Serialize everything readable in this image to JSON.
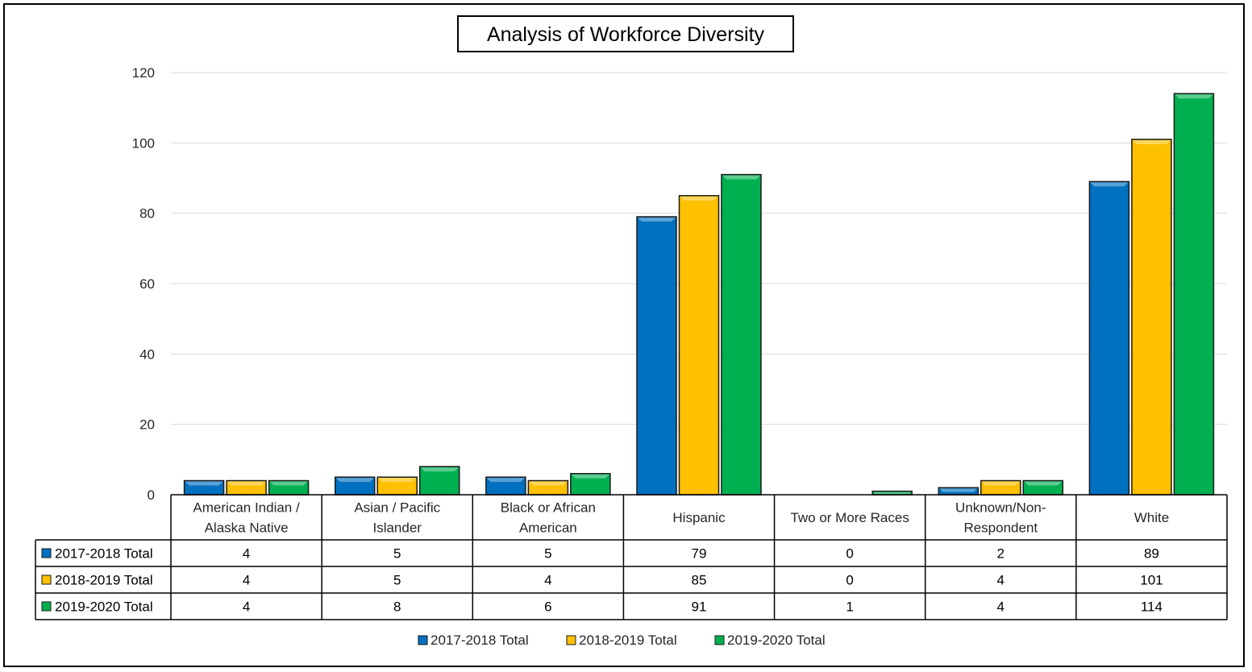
{
  "chart_data": {
    "type": "bar",
    "title": "Analysis of Workforce Diversity",
    "xlabel": "",
    "ylabel": "",
    "ylim": [
      0,
      120
    ],
    "yticks": [
      0,
      20,
      40,
      60,
      80,
      100,
      120
    ],
    "grid": true,
    "legend_position": "bottom",
    "categories": [
      [
        "American Indian /",
        "Alaska Native"
      ],
      [
        "Asian / Pacific",
        "Islander"
      ],
      [
        "Black or African",
        "American"
      ],
      [
        "Hispanic"
      ],
      [
        "Two or More Races"
      ],
      [
        "Unknown/Non-",
        "Respondent"
      ],
      [
        "White"
      ]
    ],
    "series": [
      {
        "name": "2017-2018 Total",
        "color": "#0070C0",
        "values": [
          4,
          5,
          5,
          79,
          0,
          2,
          89
        ]
      },
      {
        "name": "2018-2019 Total",
        "color": "#FFC000",
        "values": [
          4,
          5,
          4,
          85,
          0,
          4,
          101
        ]
      },
      {
        "name": "2019-2020 Total",
        "color": "#00B050",
        "values": [
          4,
          8,
          6,
          91,
          1,
          4,
          114
        ]
      }
    ]
  }
}
